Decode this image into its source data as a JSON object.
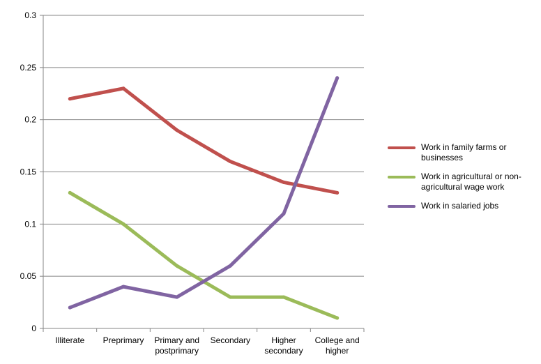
{
  "chart_data": {
    "type": "line",
    "categories": [
      [
        "Illiterate"
      ],
      [
        "Preprimary"
      ],
      [
        "Primary and",
        "postprimary"
      ],
      [
        "Secondary"
      ],
      [
        "Higher",
        "secondary"
      ],
      [
        "College and",
        "higher"
      ]
    ],
    "series": [
      {
        "name": "Work in family farms or businesses",
        "color": "#c0504d",
        "values": [
          0.22,
          0.23,
          0.19,
          0.16,
          0.14,
          0.13
        ]
      },
      {
        "name": "Work in agricultural or non-agricultural wage work",
        "color": "#9bbb59",
        "values": [
          0.13,
          0.1,
          0.06,
          0.03,
          0.03,
          0.01
        ]
      },
      {
        "name": "Work in salaried jobs",
        "color": "#8064a2",
        "values": [
          0.02,
          0.04,
          0.03,
          0.06,
          0.11,
          0.24
        ]
      }
    ],
    "yticks": [
      "0",
      "0.05",
      "0.1",
      "0.15",
      "0.2",
      "0.25",
      "0.3"
    ],
    "ylim": [
      0,
      0.3
    ],
    "grid": true,
    "legend_position": "right",
    "title": "",
    "xlabel": "",
    "ylabel": ""
  },
  "legend": {
    "items": [
      {
        "lines": [
          "Work in family farms or",
          "businesses"
        ]
      },
      {
        "lines": [
          "Work in agricultural or non-",
          "agricultural wage work"
        ]
      },
      {
        "lines": [
          "Work in salaried jobs"
        ]
      }
    ]
  }
}
